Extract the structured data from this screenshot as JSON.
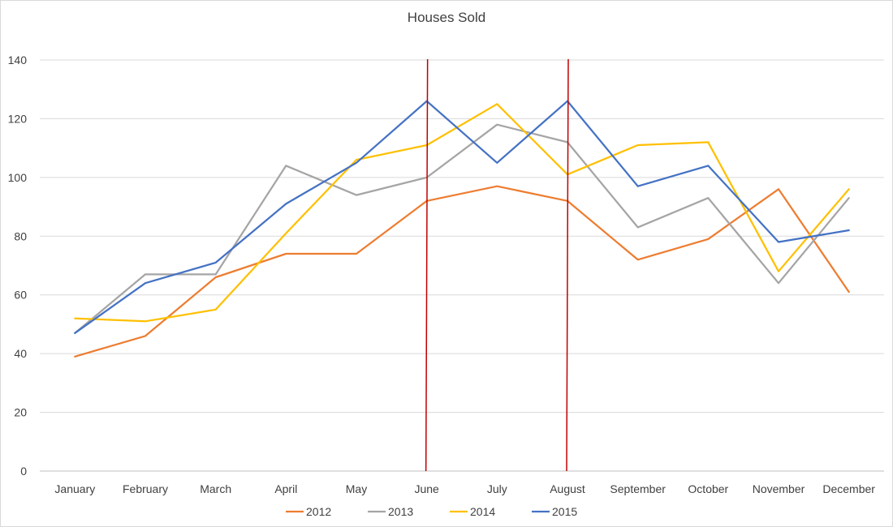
{
  "chart_data": {
    "type": "line",
    "title": "Houses Sold",
    "xlabel": "",
    "ylabel": "",
    "categories": [
      "January",
      "February",
      "March",
      "April",
      "May",
      "June",
      "July",
      "August",
      "September",
      "October",
      "November",
      "December"
    ],
    "ylim": [
      0,
      140
    ],
    "yticks": [
      0,
      20,
      40,
      60,
      80,
      100,
      120,
      140
    ],
    "grid": true,
    "legend_position": "bottom",
    "series": [
      {
        "name": "2012",
        "color": "#ED7D31",
        "values": [
          39,
          46,
          66,
          74,
          74,
          92,
          97,
          92,
          72,
          79,
          96,
          61
        ]
      },
      {
        "name": "2013",
        "color": "#A5A5A5",
        "values": [
          47,
          67,
          67,
          104,
          94,
          100,
          118,
          112,
          83,
          93,
          64,
          93
        ]
      },
      {
        "name": "2014",
        "color": "#FFC000",
        "values": [
          52,
          51,
          55,
          81,
          106,
          111,
          125,
          101,
          111,
          112,
          68,
          96
        ]
      },
      {
        "name": "2015",
        "color": "#4472C4",
        "values": [
          47,
          64,
          71,
          91,
          105,
          126,
          105,
          126,
          97,
          104,
          78,
          82
        ]
      }
    ],
    "annotations": [
      {
        "type": "vertical-line",
        "category": "June",
        "color": "#C00000"
      },
      {
        "type": "vertical-line",
        "category": "August",
        "color": "#C00000"
      }
    ]
  }
}
